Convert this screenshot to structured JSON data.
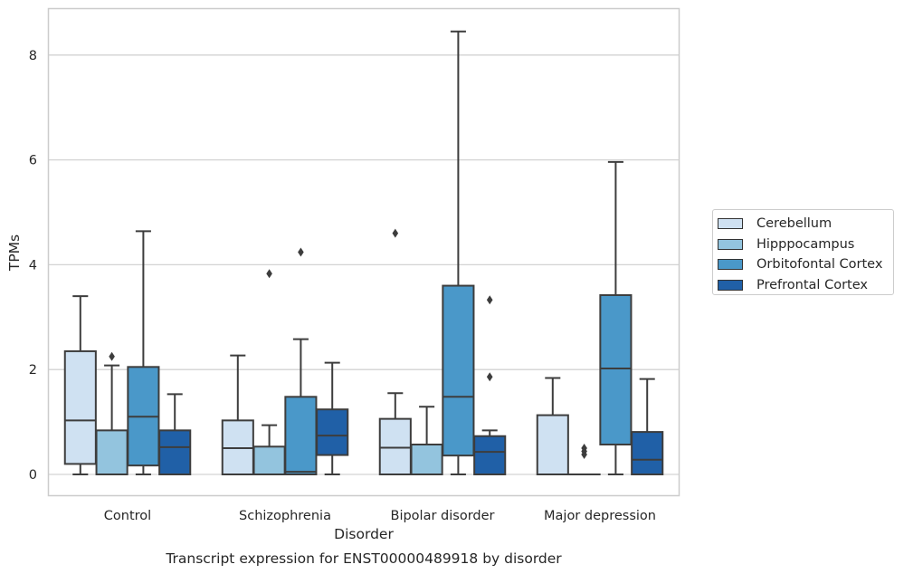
{
  "chart_data": {
    "type": "box",
    "caption": "Transcript expression for ENST00000489918 by disorder",
    "xlabel": "Disorder",
    "ylabel": "TPMs",
    "ylim": [
      -0.4,
      8.9
    ],
    "yticks": [
      0,
      2,
      4,
      6,
      8
    ],
    "grid": "horizontal",
    "legend_placement": "right",
    "categories": [
      "Control",
      "Schizophrenia",
      "Bipolar disorder",
      "Major depression"
    ],
    "series": [
      {
        "name": "Cerebellum",
        "color": "#cfe1f2",
        "boxes": [
          {
            "whislo": 0.0,
            "q1": 0.2,
            "med": 1.03,
            "q3": 2.35,
            "whishi": 3.4,
            "fliers": []
          },
          {
            "whislo": 0.0,
            "q1": 0.0,
            "med": 0.5,
            "q3": 1.03,
            "whishi": 2.27,
            "fliers": []
          },
          {
            "whislo": 0.0,
            "q1": 0.0,
            "med": 0.51,
            "q3": 1.06,
            "whishi": 1.55,
            "fliers": [
              4.6
            ]
          },
          {
            "whislo": 0.0,
            "q1": 0.0,
            "med": 0.0,
            "q3": 1.13,
            "whishi": 1.84,
            "fliers": []
          }
        ]
      },
      {
        "name": "Hipppocampus",
        "color": "#93c4de",
        "boxes": [
          {
            "whislo": 0.0,
            "q1": 0.0,
            "med": 0.0,
            "q3": 0.84,
            "whishi": 2.08,
            "fliers": [
              2.25
            ]
          },
          {
            "whislo": 0.0,
            "q1": 0.0,
            "med": 0.0,
            "q3": 0.53,
            "whishi": 0.94,
            "fliers": [
              3.83
            ]
          },
          {
            "whislo": 0.0,
            "q1": 0.0,
            "med": 0.0,
            "q3": 0.57,
            "whishi": 1.29,
            "fliers": []
          },
          {
            "whislo": 0.0,
            "q1": 0.0,
            "med": 0.0,
            "q3": 0.0,
            "whishi": 0.0,
            "fliers": [
              0.38,
              0.44,
              0.5
            ]
          }
        ]
      },
      {
        "name": "Orbitofontal Cortex",
        "color": "#4a98c9",
        "boxes": [
          {
            "whislo": 0.0,
            "q1": 0.17,
            "med": 1.1,
            "q3": 2.05,
            "whishi": 4.64,
            "fliers": []
          },
          {
            "whislo": 0.0,
            "q1": 0.0,
            "med": 0.05,
            "q3": 1.48,
            "whishi": 2.58,
            "fliers": [
              4.24
            ]
          },
          {
            "whislo": 0.0,
            "q1": 0.36,
            "med": 1.48,
            "q3": 3.6,
            "whishi": 8.45,
            "fliers": []
          },
          {
            "whislo": 0.0,
            "q1": 0.57,
            "med": 2.02,
            "q3": 3.42,
            "whishi": 5.96,
            "fliers": []
          }
        ]
      },
      {
        "name": "Prefrontal Cortex",
        "color": "#2060a7",
        "boxes": [
          {
            "whislo": 0.0,
            "q1": 0.0,
            "med": 0.52,
            "q3": 0.84,
            "whishi": 1.53,
            "fliers": []
          },
          {
            "whislo": 0.0,
            "q1": 0.37,
            "med": 0.74,
            "q3": 1.24,
            "whishi": 2.13,
            "fliers": []
          },
          {
            "whislo": 0.0,
            "q1": 0.0,
            "med": 0.43,
            "q3": 0.73,
            "whishi": 0.84,
            "fliers": [
              1.86,
              3.33
            ]
          },
          {
            "whislo": 0.0,
            "q1": 0.0,
            "med": 0.28,
            "q3": 0.81,
            "whishi": 1.82,
            "fliers": []
          }
        ]
      }
    ]
  }
}
